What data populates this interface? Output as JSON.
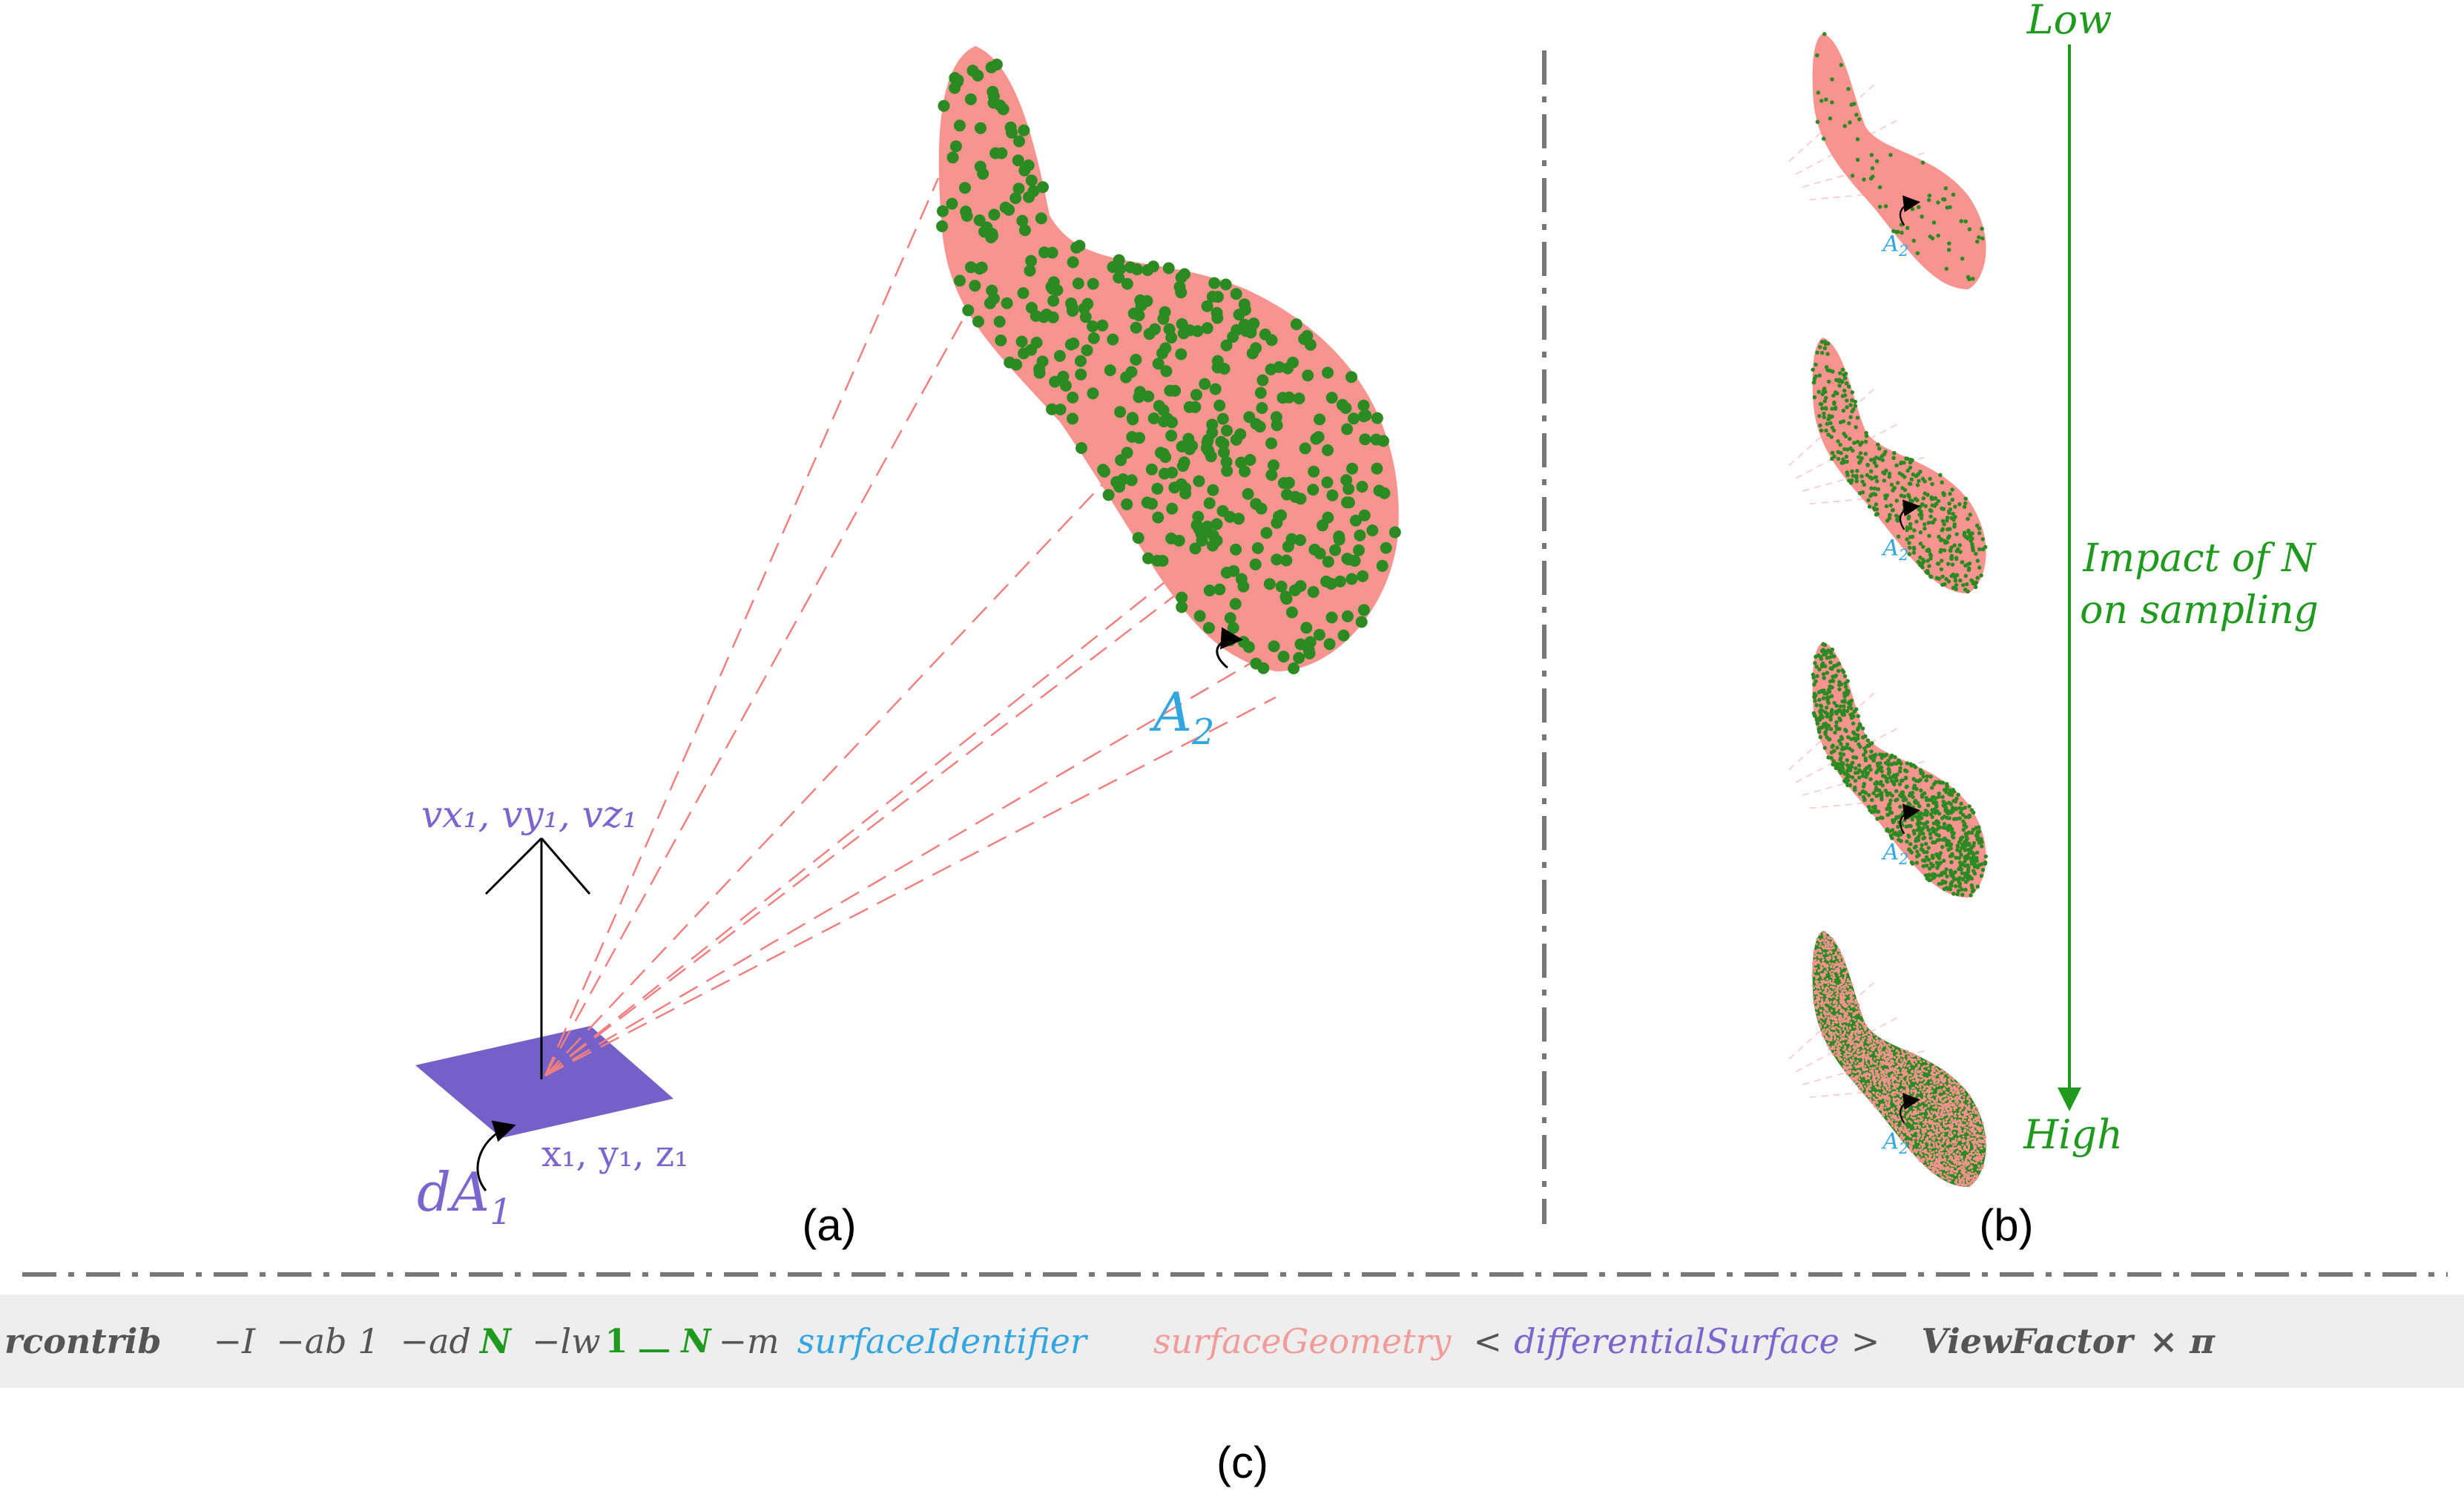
{
  "panel_a": {
    "normal_vector_label": "vx₁, vy₁, vz₁",
    "point_label": "x₁, y₁, z₁",
    "differential_surface_label": "dA",
    "differential_surface_subscript": "1",
    "target_surface_label": "A",
    "target_surface_subscript": "2",
    "caption": "(a)"
  },
  "panel_b": {
    "low_label": "Low",
    "high_label": "High",
    "impact_line1": "Impact of N",
    "impact_line2": "on sampling",
    "thumb_label": "A",
    "thumb_subscript": "2",
    "thumbnail_densities": [
      "low",
      "medium",
      "high",
      "very-high"
    ],
    "caption": "(b)"
  },
  "panel_c": {
    "cmd_name": "rcontrib",
    "opt_i": "−I",
    "opt_ab": "−ab 1",
    "opt_ad": "−ad",
    "n_symbol": "N",
    "opt_lw": "−lw",
    "frac_num": "1",
    "frac_den": "N",
    "opt_m": "−m",
    "surface_identifier": "surfaceIdentifier",
    "surface_geometry": "surfaceGeometry",
    "lt": "<",
    "differential_surface": "differentialSurface",
    "gt": ">",
    "view_factor": "ViewFactor",
    "times_pi": "× π",
    "caption": "(c)"
  },
  "colors": {
    "target_fill": "#f7948f",
    "sample_point": "#2b8a22",
    "differential_fill": "#7560c8",
    "label_blue": "#33a6e0",
    "label_purple": "#7a66cc",
    "label_green": "#1f9a1f",
    "divider": "#777777",
    "ray": "#f08080"
  }
}
